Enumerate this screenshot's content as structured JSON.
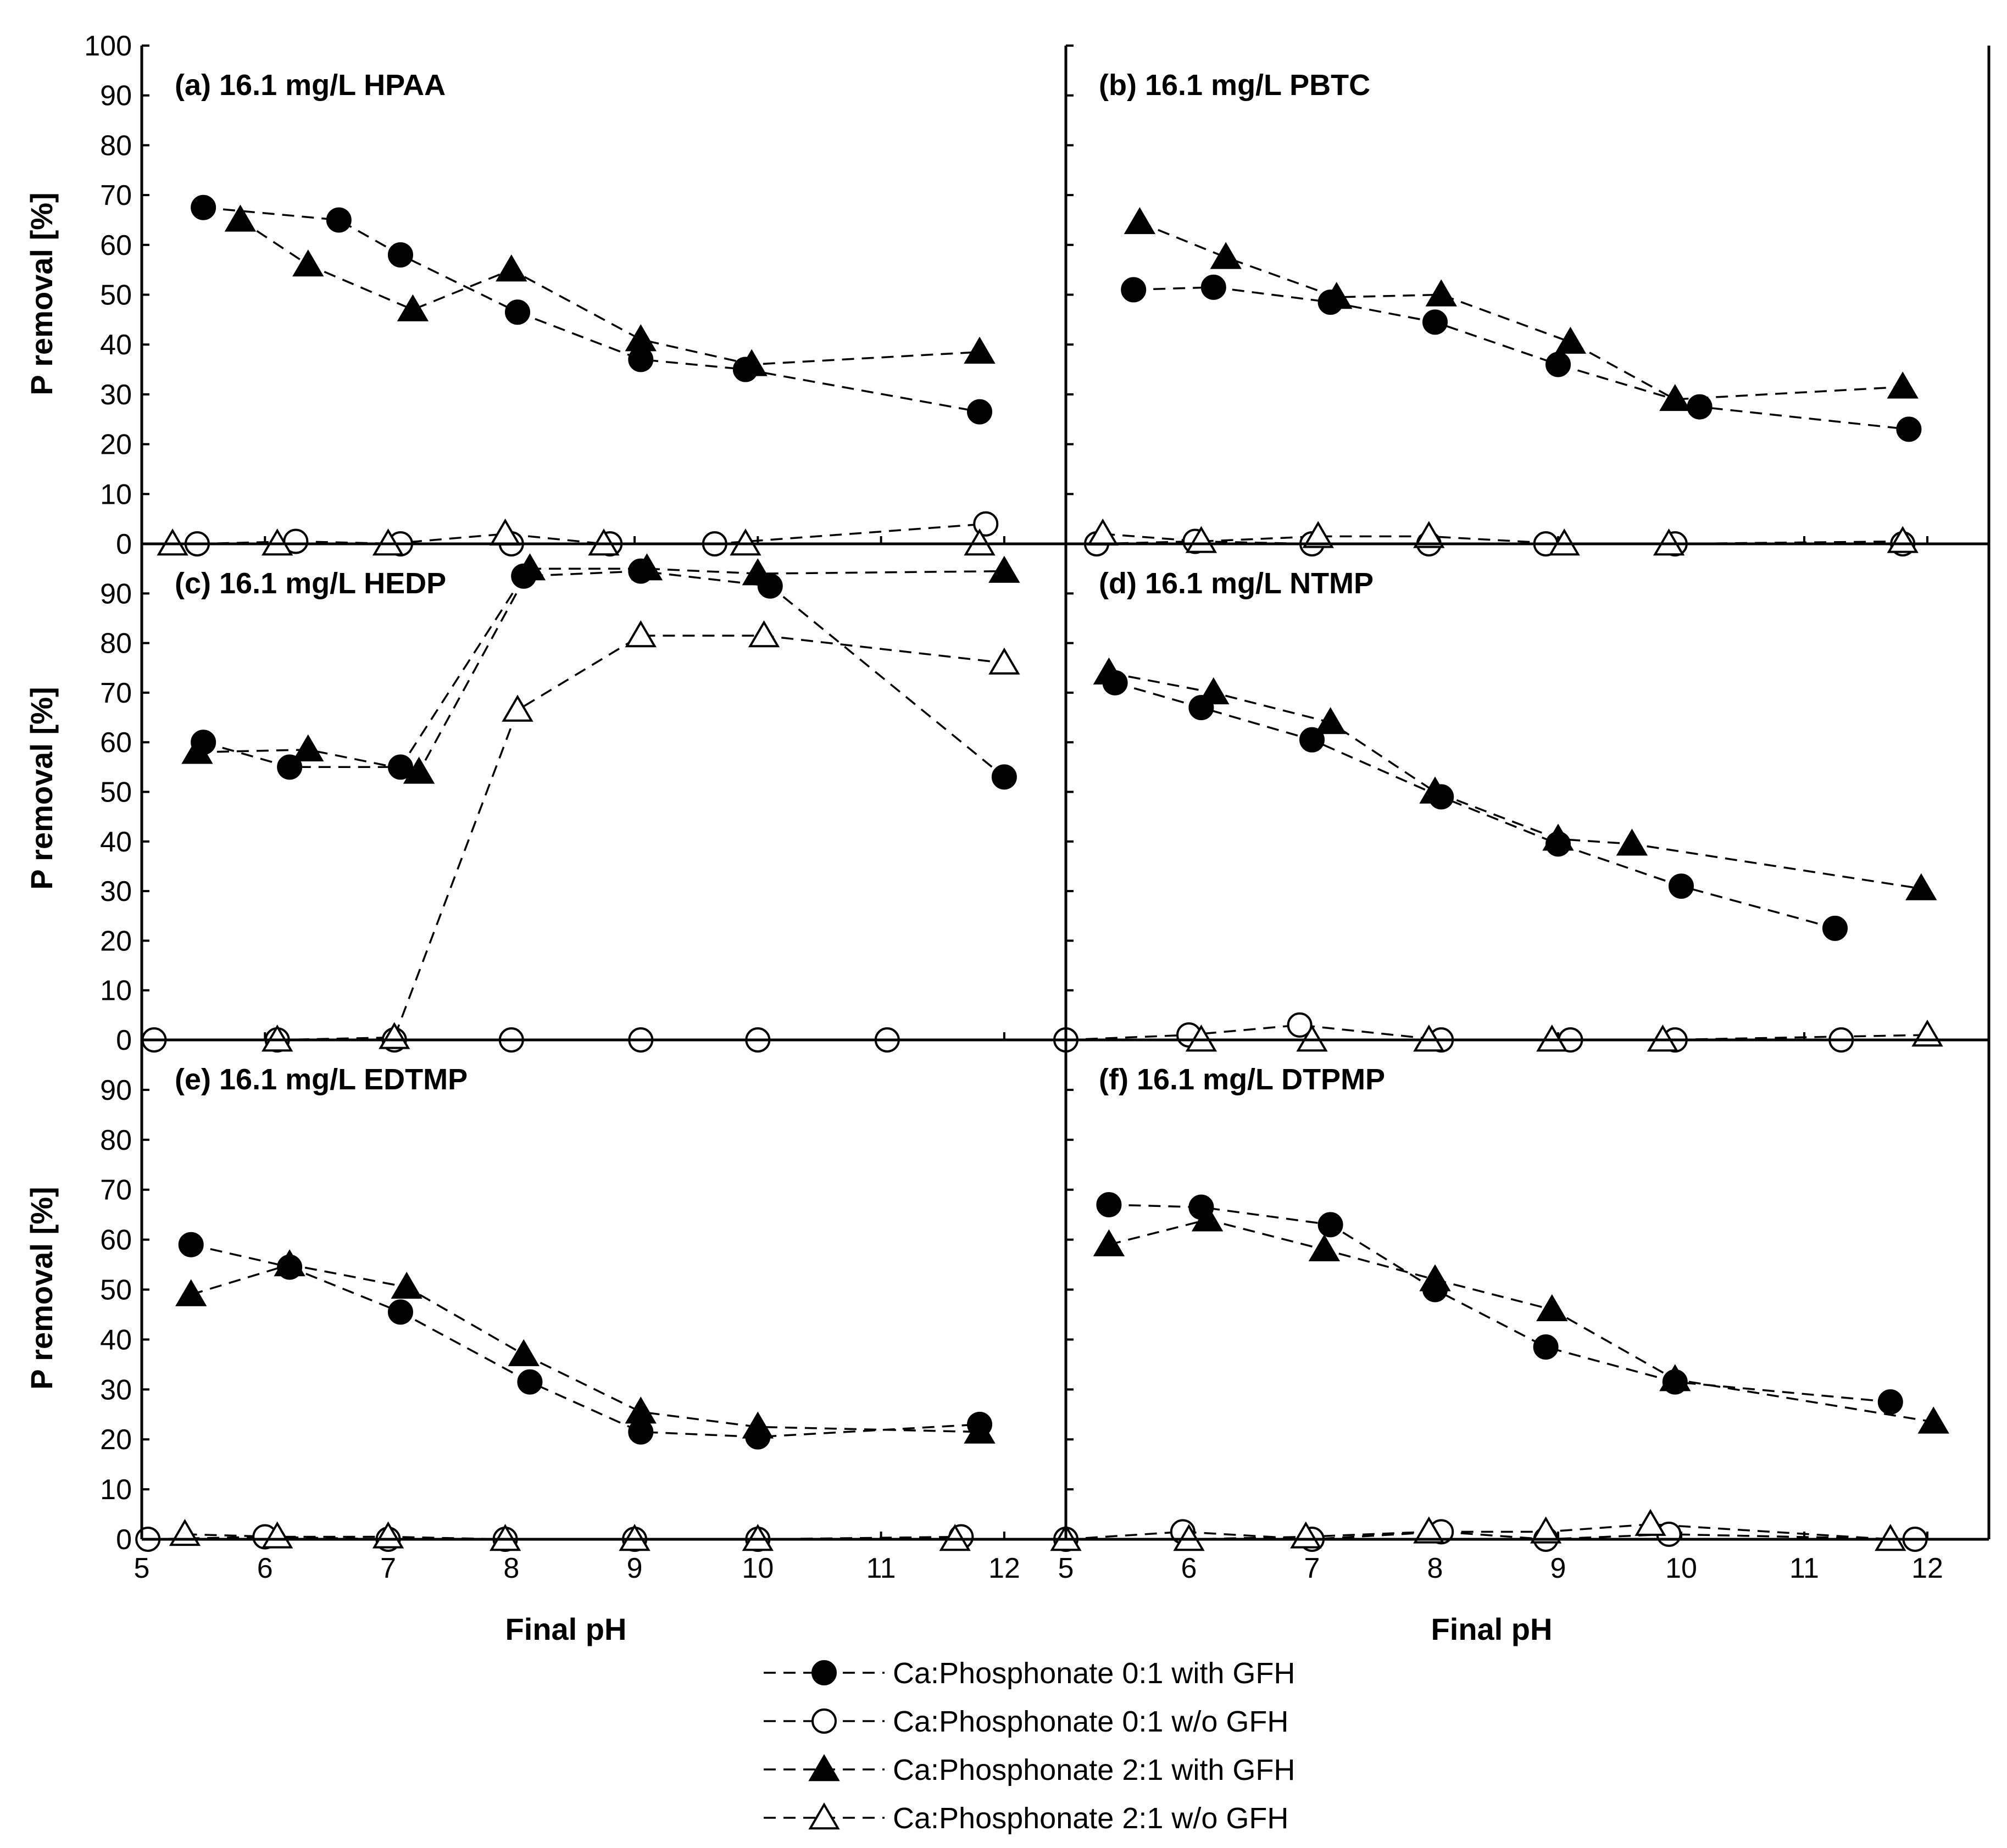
{
  "figure": {
    "x_axis_title": "Final pH",
    "y_axis_title": "P removal [%]"
  },
  "legend": [
    {
      "label": "Ca:Phosphonate 0:1 with GFH",
      "marker": "circle",
      "fill": "#000000"
    },
    {
      "label": "Ca:Phosphonate 0:1 w/o GFH",
      "marker": "circle",
      "fill": "#ffffff"
    },
    {
      "label": "Ca:Phosphonate 2:1 with GFH",
      "marker": "triangle",
      "fill": "#000000"
    },
    {
      "label": "Ca:Phosphonate 2:1 w/o GFH",
      "marker": "triangle",
      "fill": "#ffffff"
    }
  ],
  "chart_data": [
    {
      "type": "line",
      "title": "(a) 16.1 mg/L HPAA",
      "xlabel": "Final pH",
      "ylabel": "P removal [%]",
      "xlim": [
        5,
        12.5
      ],
      "ylim": [
        0,
        100
      ],
      "xticks": [
        "5",
        "6",
        "7",
        "8",
        "9",
        "10",
        "11",
        "12"
      ],
      "yticks": [
        "0",
        "10",
        "20",
        "30",
        "40",
        "50",
        "60",
        "70",
        "80",
        "90",
        "100"
      ],
      "series": [
        {
          "name": "Ca:Phosphonate 0:1 with GFH",
          "x": [
            5.5,
            6.6,
            7.1,
            8.05,
            9.05,
            9.9,
            11.8
          ],
          "y": [
            67.5,
            65,
            58,
            46.5,
            37,
            35,
            26.5
          ]
        },
        {
          "name": "Ca:Phosphonate 0:1 w/o GFH",
          "x": [
            5.45,
            6.25,
            7.1,
            8.0,
            8.8,
            9.65,
            11.85
          ],
          "y": [
            0,
            0.5,
            0,
            0,
            0,
            0,
            4
          ]
        },
        {
          "name": "Ca:Phosphonate 2:1 with GFH",
          "x": [
            5.8,
            6.35,
            7.2,
            8.0,
            9.05,
            9.95,
            11.8
          ],
          "y": [
            65,
            56,
            47,
            55,
            41,
            36,
            38.5
          ]
        },
        {
          "name": "Ca:Phosphonate 2:1 w/o GFH",
          "x": [
            5.25,
            6.1,
            7.0,
            7.95,
            8.75,
            9.9,
            11.8
          ],
          "y": [
            0,
            0,
            0,
            2,
            0,
            0,
            0
          ]
        }
      ]
    },
    {
      "type": "line",
      "title": "(b) 16.1 mg/L PBTC",
      "xlabel": "Final pH",
      "ylabel": "P removal [%]",
      "xlim": [
        5,
        12.5
      ],
      "ylim": [
        0,
        100
      ],
      "xticks": [
        "5",
        "6",
        "7",
        "8",
        "9",
        "10",
        "11",
        "12"
      ],
      "yticks": [
        "0",
        "10",
        "20",
        "30",
        "40",
        "50",
        "60",
        "70",
        "80",
        "90",
        "100"
      ],
      "series": [
        {
          "name": "Ca:Phosphonate 0:1 with GFH",
          "x": [
            5.55,
            6.2,
            7.15,
            8.0,
            9.0,
            10.15,
            11.85
          ],
          "y": [
            51,
            51.5,
            48.5,
            44.5,
            36,
            27.5,
            23
          ]
        },
        {
          "name": "Ca:Phosphonate 0:1 w/o GFH",
          "x": [
            5.25,
            6.05,
            7.0,
            7.95,
            8.9,
            9.95,
            11.8
          ],
          "y": [
            0,
            0.5,
            0,
            0,
            0,
            0,
            0
          ]
        },
        {
          "name": "Ca:Phosphonate 2:1 with GFH",
          "x": [
            5.6,
            6.3,
            7.2,
            8.05,
            9.1,
            9.95,
            11.8
          ],
          "y": [
            64.5,
            57.5,
            49.5,
            50,
            40.5,
            29,
            31.5
          ]
        },
        {
          "name": "Ca:Phosphonate 2:1 w/o GFH",
          "x": [
            5.3,
            6.1,
            7.05,
            7.95,
            9.05,
            9.9,
            11.8
          ],
          "y": [
            2,
            0.5,
            1.5,
            1.5,
            0,
            0,
            0.5
          ]
        }
      ]
    },
    {
      "type": "line",
      "title": "(c) 16.1 mg/L HEDP",
      "xlabel": "Final pH",
      "ylabel": "P removal [%]",
      "xlim": [
        5,
        12.5
      ],
      "ylim": [
        0,
        100
      ],
      "xticks": [
        "5",
        "6",
        "7",
        "8",
        "9",
        "10",
        "11",
        "12"
      ],
      "yticks": [
        "0",
        "10",
        "20",
        "30",
        "40",
        "50",
        "60",
        "70",
        "80",
        "90"
      ],
      "series": [
        {
          "name": "Ca:Phosphonate 0:1 with GFH",
          "x": [
            5.5,
            6.2,
            7.1,
            8.1,
            9.05,
            10.1,
            12.0
          ],
          "y": [
            60,
            55,
            55,
            93.5,
            94.5,
            91.5,
            53
          ]
        },
        {
          "name": "Ca:Phosphonate 0:1 w/o GFH",
          "x": [
            5.1,
            6.1,
            7.05,
            8.0,
            9.05,
            10.0,
            11.05
          ],
          "y": [
            0,
            0,
            0,
            0,
            0,
            0,
            0
          ]
        },
        {
          "name": "Ca:Phosphonate 2:1 with GFH",
          "x": [
            5.45,
            6.35,
            7.25,
            8.15,
            9.1,
            10.0,
            12.0
          ],
          "y": [
            58,
            58.5,
            54,
            95,
            95,
            94,
            94.5
          ]
        },
        {
          "name": "Ca:Phosphonate 2:1 w/o GFH",
          "x": [
            6.1,
            7.05,
            8.05,
            9.05,
            10.05,
            12.0
          ],
          "y": [
            0,
            0.5,
            66.5,
            81.5,
            81.5,
            76
          ]
        }
      ]
    },
    {
      "type": "line",
      "title": "(d) 16.1 mg/L NTMP",
      "xlabel": "Final pH",
      "ylabel": "P removal [%]",
      "xlim": [
        5,
        12.5
      ],
      "ylim": [
        0,
        100
      ],
      "xticks": [
        "5",
        "6",
        "7",
        "8",
        "9",
        "10",
        "11",
        "12"
      ],
      "yticks": [
        "0",
        "10",
        "20",
        "30",
        "40",
        "50",
        "60",
        "70",
        "80",
        "90"
      ],
      "series": [
        {
          "name": "Ca:Phosphonate 0:1 with GFH",
          "x": [
            5.4,
            6.1,
            7.0,
            8.05,
            9.0,
            10.0,
            11.25
          ],
          "y": [
            72,
            67,
            60.5,
            49,
            39.5,
            31,
            22.5
          ]
        },
        {
          "name": "Ca:Phosphonate 0:1 w/o GFH",
          "x": [
            5.0,
            6.0,
            6.9,
            8.05,
            9.1,
            9.95,
            11.3
          ],
          "y": [
            0,
            1,
            3,
            0,
            0,
            0,
            0
          ]
        },
        {
          "name": "Ca:Phosphonate 2:1 with GFH",
          "x": [
            5.35,
            6.2,
            7.15,
            8.0,
            9.0,
            9.6,
            11.95
          ],
          "y": [
            74,
            70,
            64,
            50,
            40.5,
            39.5,
            30.5
          ]
        },
        {
          "name": "Ca:Phosphonate 2:1 w/o GFH",
          "x": [
            6.1,
            7.0,
            7.95,
            8.95,
            9.85,
            12.0
          ],
          "y": [
            0,
            0,
            0,
            0,
            0,
            1
          ]
        }
      ]
    },
    {
      "type": "line",
      "title": "(e) 16.1 mg/L EDTMP",
      "xlabel": "Final pH",
      "ylabel": "P removal [%]",
      "xlim": [
        5,
        12.5
      ],
      "ylim": [
        0,
        100
      ],
      "xticks": [
        "5",
        "6",
        "7",
        "8",
        "9",
        "10",
        "11",
        "12"
      ],
      "yticks": [
        "0",
        "10",
        "20",
        "30",
        "40",
        "50",
        "60",
        "70",
        "80",
        "90"
      ],
      "series": [
        {
          "name": "Ca:Phosphonate 0:1 with GFH",
          "x": [
            5.4,
            6.2,
            7.1,
            8.15,
            9.05,
            10.0,
            11.8
          ],
          "y": [
            59,
            54.5,
            45.5,
            31.5,
            21.5,
            20.5,
            23
          ]
        },
        {
          "name": "Ca:Phosphonate 0:1 w/o GFH",
          "x": [
            5.05,
            6.0,
            7.0,
            7.95,
            9.0,
            10.0,
            11.65
          ],
          "y": [
            0,
            0.5,
            0,
            0,
            0,
            0,
            0.5
          ]
        },
        {
          "name": "Ca:Phosphonate 2:1 with GFH",
          "x": [
            5.4,
            6.2,
            7.15,
            8.1,
            9.05,
            10.0,
            11.8
          ],
          "y": [
            49,
            55,
            50.5,
            37,
            25.5,
            22.5,
            21.5
          ]
        },
        {
          "name": "Ca:Phosphonate 2:1 w/o GFH",
          "x": [
            5.35,
            6.1,
            7.0,
            7.95,
            9.0,
            10.0,
            11.6
          ],
          "y": [
            1,
            0.5,
            0.5,
            0,
            0,
            0,
            0
          ]
        }
      ]
    },
    {
      "type": "line",
      "title": "(f) 16.1 mg/L DTPMP",
      "xlabel": "Final pH",
      "ylabel": "P removal [%]",
      "xlim": [
        5,
        12.5
      ],
      "ylim": [
        0,
        100
      ],
      "xticks": [
        "5",
        "6",
        "7",
        "8",
        "9",
        "10",
        "11",
        "12"
      ],
      "yticks": [
        "0",
        "10",
        "20",
        "30",
        "40",
        "50",
        "60",
        "70",
        "80",
        "90"
      ],
      "series": [
        {
          "name": "Ca:Phosphonate 0:1 with GFH",
          "x": [
            5.35,
            6.1,
            7.15,
            8.0,
            8.9,
            9.95,
            11.7
          ],
          "y": [
            67,
            66.5,
            63,
            50,
            38.5,
            31.5,
            27.5
          ]
        },
        {
          "name": "Ca:Phosphonate 0:1 w/o GFH",
          "x": [
            5.0,
            5.95,
            7.0,
            8.05,
            8.9,
            9.9,
            11.9
          ],
          "y": [
            0,
            1.5,
            0,
            1.5,
            0,
            1,
            0
          ]
        },
        {
          "name": "Ca:Phosphonate 2:1 with GFH",
          "x": [
            5.35,
            6.15,
            7.1,
            8.0,
            8.95,
            9.95,
            12.05
          ],
          "y": [
            59,
            64,
            58,
            52,
            46,
            32,
            23.5
          ]
        },
        {
          "name": "Ca:Phosphonate 2:1 w/o GFH",
          "x": [
            5.0,
            6.0,
            6.95,
            7.95,
            8.9,
            9.75,
            11.7
          ],
          "y": [
            0,
            0,
            0.5,
            1.5,
            1.5,
            3,
            0
          ]
        }
      ]
    }
  ]
}
